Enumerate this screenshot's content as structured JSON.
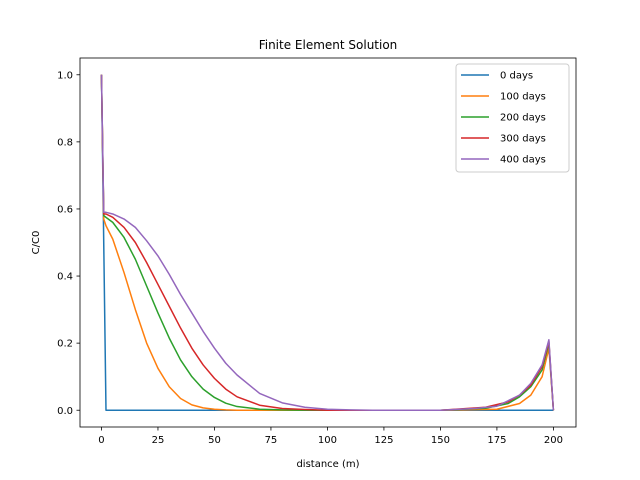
{
  "chart_data": {
    "type": "line",
    "title": "Finite Element Solution",
    "xlabel": "distance (m)",
    "ylabel": "C/C0",
    "xlim": [
      -9.5,
      210
    ],
    "ylim": [
      -0.05,
      1.05
    ],
    "xticks": [
      0,
      25,
      50,
      75,
      100,
      125,
      150,
      175,
      200
    ],
    "yticks": [
      0.0,
      0.2,
      0.4,
      0.6,
      0.8,
      1.0
    ],
    "grid": false,
    "legend_position": "top-right",
    "series": [
      {
        "name": "0 days",
        "color": "#1f77b4",
        "x": [
          0,
          2,
          200
        ],
        "y": [
          1.0,
          0.0,
          0.0
        ]
      },
      {
        "name": "100 days",
        "color": "#ff7f0e",
        "x": [
          0,
          1,
          2,
          5,
          10,
          15,
          20,
          25,
          30,
          35,
          40,
          45,
          50,
          55,
          60,
          70,
          80,
          100,
          150,
          175,
          185,
          190,
          195,
          198,
          200
        ],
        "y": [
          1.0,
          0.57,
          0.55,
          0.51,
          0.41,
          0.3,
          0.2,
          0.125,
          0.07,
          0.035,
          0.016,
          0.007,
          0.003,
          0.001,
          0.0,
          0.0,
          0.0,
          0.0,
          0.0,
          0.003,
          0.02,
          0.045,
          0.1,
          0.185,
          0.0
        ]
      },
      {
        "name": "200 days",
        "color": "#2ca02c",
        "x": [
          0,
          1,
          2,
          5,
          10,
          15,
          20,
          25,
          30,
          35,
          40,
          45,
          50,
          55,
          60,
          70,
          80,
          90,
          100,
          125,
          150,
          170,
          180,
          185,
          190,
          195,
          198,
          200
        ],
        "y": [
          1.0,
          0.58,
          0.575,
          0.56,
          0.515,
          0.45,
          0.37,
          0.29,
          0.215,
          0.15,
          0.1,
          0.063,
          0.038,
          0.021,
          0.011,
          0.003,
          0.001,
          0.0,
          0.0,
          0.0,
          0.0,
          0.006,
          0.02,
          0.04,
          0.07,
          0.12,
          0.2,
          0.0
        ]
      },
      {
        "name": "300 days",
        "color": "#d62728",
        "x": [
          0,
          1,
          2,
          5,
          10,
          15,
          20,
          25,
          30,
          35,
          40,
          45,
          50,
          55,
          60,
          70,
          80,
          90,
          100,
          110,
          125,
          150,
          170,
          180,
          185,
          190,
          195,
          198,
          200
        ],
        "y": [
          1.0,
          0.585,
          0.585,
          0.575,
          0.545,
          0.5,
          0.44,
          0.375,
          0.31,
          0.245,
          0.185,
          0.135,
          0.095,
          0.063,
          0.04,
          0.015,
          0.005,
          0.002,
          0.0,
          0.0,
          0.0,
          0.0,
          0.009,
          0.025,
          0.045,
          0.075,
          0.13,
          0.205,
          0.0
        ]
      },
      {
        "name": "400 days",
        "color": "#9467bd",
        "x": [
          0,
          1,
          2,
          5,
          10,
          15,
          20,
          25,
          30,
          35,
          40,
          45,
          50,
          55,
          60,
          70,
          80,
          90,
          100,
          110,
          120,
          130,
          150,
          165,
          175,
          185,
          190,
          195,
          198,
          200
        ],
        "y": [
          1.0,
          0.59,
          0.59,
          0.585,
          0.57,
          0.545,
          0.505,
          0.46,
          0.405,
          0.345,
          0.29,
          0.235,
          0.185,
          0.14,
          0.105,
          0.05,
          0.022,
          0.009,
          0.003,
          0.001,
          0.0,
          0.0,
          0.0,
          0.005,
          0.012,
          0.045,
          0.08,
          0.135,
          0.21,
          0.0
        ]
      }
    ]
  }
}
